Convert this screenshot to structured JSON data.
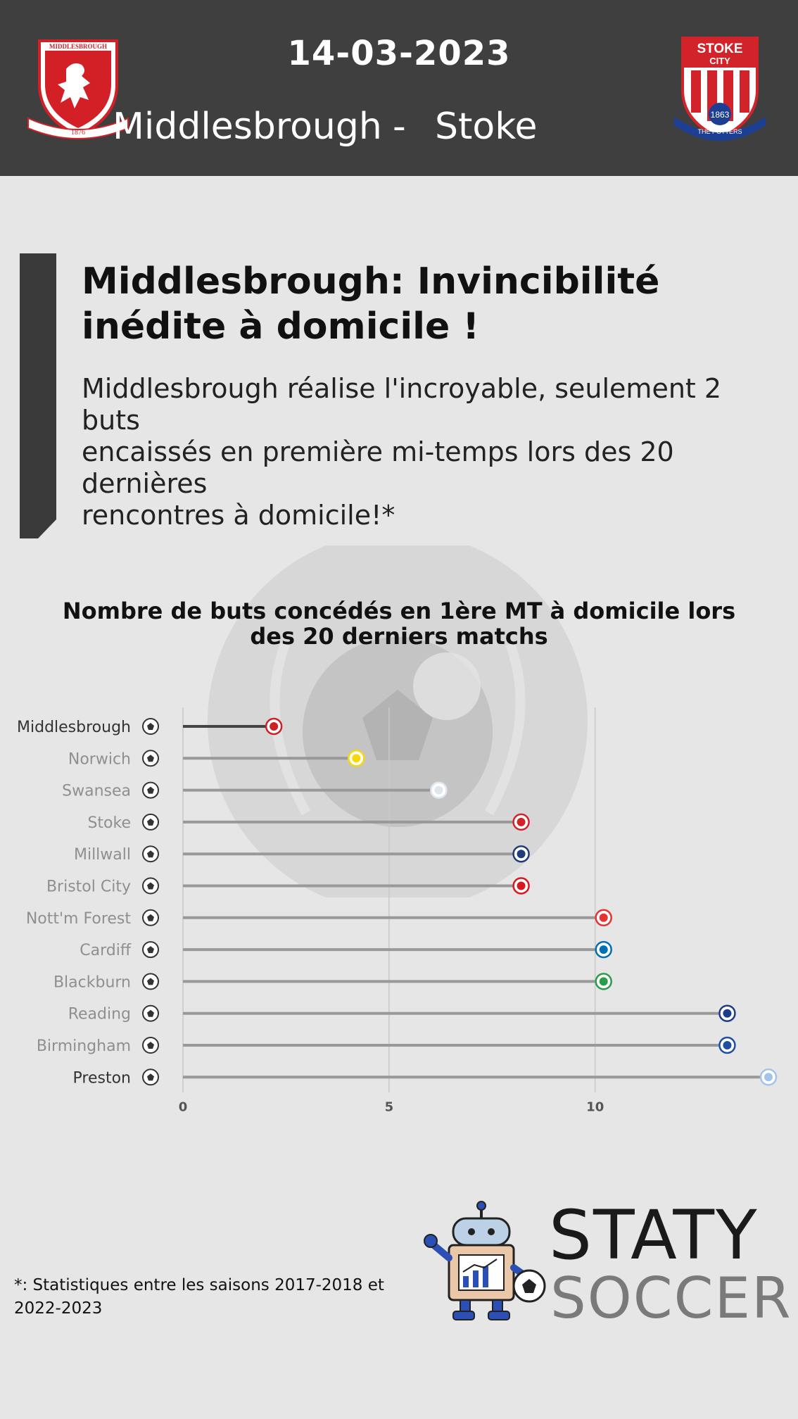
{
  "header": {
    "date": "14-03-2023",
    "home_team": "Middlesbrough",
    "separator": "-",
    "away_team": "Stoke",
    "home_crest_icon": "middlesbrough-crest-icon",
    "away_crest_icon": "stoke-city-crest-icon",
    "home_crest_text": {
      "top": "MIDDLESBROUGH",
      "year": "1876"
    },
    "away_crest_text": {
      "top": "STOKE",
      "mid": "CITY",
      "year": "1863",
      "banner": "THE POTTERS"
    }
  },
  "headline": {
    "title_line1": "Middlesbrough: Invincibilité",
    "title_line2": "inédite à domicile !",
    "body_line1": "Middlesbrough réalise l'incroyable, seulement 2 buts",
    "body_line2": "encaissés en première mi-temps lors des 20 dernières",
    "body_line3": "rencontres à domicile!*"
  },
  "colors": {
    "header_bg": "#3f3f3f",
    "page_bg": "#e6e6e6",
    "highlight_bar": "#444444",
    "bar": "#999999",
    "label_default": "#8f8f8f",
    "label_highlight": "#333333"
  },
  "chart_data": {
    "type": "bar",
    "orientation": "horizontal",
    "title_line1": "Nombre de buts concédés en 1ère MT à domicile lors",
    "title_line2": "des 20 derniers matchs",
    "categories": [
      "Middlesbrough",
      "Norwich",
      "Swansea",
      "Stoke",
      "Millwall",
      "Bristol City",
      "Nott'm Forest",
      "Cardiff",
      "Blackburn",
      "Reading",
      "Birmingham",
      "Preston"
    ],
    "values": [
      2,
      4,
      6,
      8,
      8,
      8,
      10,
      10,
      10,
      13,
      13,
      14
    ],
    "highlight": [
      "Middlesbrough",
      "Preston"
    ],
    "xlim": [
      0,
      14
    ],
    "xticks": [
      0,
      5,
      10
    ],
    "grid": "vertical",
    "category_icon": "soccer-ball-icon",
    "end_icons": [
      "middlesbrough-badge-icon",
      "norwich-badge-icon",
      "swansea-badge-icon",
      "stoke-badge-icon",
      "millwall-badge-icon",
      "bristol-city-badge-icon",
      "nottm-forest-badge-icon",
      "cardiff-badge-icon",
      "blackburn-badge-icon",
      "reading-badge-icon",
      "birmingham-badge-icon",
      "preston-badge-icon"
    ],
    "badge_colors": [
      "#cc2127",
      "#f5d90a",
      "#dfe6ee",
      "#d2232a",
      "#1f3d7a",
      "#d71920",
      "#e53233",
      "#0070b5",
      "#2a9d4a",
      "#1c3c8a",
      "#1f4fa1",
      "#a3c4e8"
    ]
  },
  "footer": {
    "footnote_line1": "*: Statistiques entre les saisons 2017-2018 et",
    "footnote_line2": "2022-2023",
    "brand_top": "STATY",
    "brand_bottom": "SOCCER",
    "logo_icon": "robot-mascot-icon"
  }
}
